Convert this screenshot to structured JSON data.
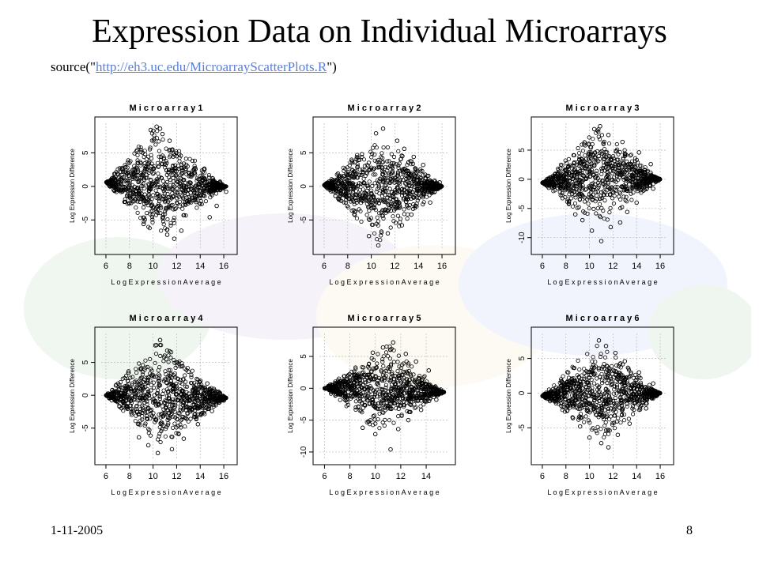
{
  "slide": {
    "title": "Expression Data on Individual Microarrays",
    "source_prefix": "source(\"",
    "source_url": "http://eh3.uc.edu/MicroarrayScatterPlots.R",
    "source_suffix": "\")",
    "footer_date": "1-11-2005",
    "page_number": "8"
  },
  "colors": {
    "points": "#000000",
    "axis": "#000000",
    "grid": "#bbbbbb",
    "link": "#5a7fd8",
    "watermark_green": "#6db06d",
    "watermark_blue": "#7f9fe8",
    "watermark_yellow": "#e8d38a",
    "watermark_purple": "#a485d0"
  },
  "chart_data": [
    {
      "type": "scatter",
      "title": "M i c r o a r r a y   1",
      "xlabel": "L o g  E x p r e s s i o n  A v e r a g e",
      "ylabel": "Log Expression Difference",
      "xlim": [
        5.6,
        16.6
      ],
      "ylim": [
        -9.2,
        9.4
      ],
      "xticks": [
        6,
        8,
        10,
        12,
        14,
        16
      ],
      "yticks": [
        -5,
        0,
        5
      ],
      "grid": true,
      "series": [
        {
          "marker": "open-circle",
          "shape": {
            "left": [
              6.0,
              0.6
            ],
            "center": [
              10.6,
              0
            ],
            "right": [
              16.2,
              0
            ],
            "upper_peak": [
              10.2,
              8.8
            ],
            "lower_peak": [
              10.4,
              -7.6
            ]
          },
          "points": [
            [
              10.3,
              8.9
            ],
            [
              10.6,
              8.6
            ],
            [
              9.8,
              8.4
            ],
            [
              10.8,
              7.8
            ],
            [
              11.4,
              6.8
            ],
            [
              12.0,
              4.5
            ],
            [
              12.6,
              3.4
            ],
            [
              13.6,
              2.6
            ],
            [
              11.8,
              -7.8
            ],
            [
              11.2,
              -7.2
            ],
            [
              12.4,
              -6.6
            ],
            [
              14.8,
              -4.6
            ],
            [
              15.4,
              -2.9
            ],
            [
              16.2,
              -0.8
            ],
            [
              9.2,
              -5.6
            ],
            [
              11.6,
              5.4
            ]
          ]
        }
      ]
    },
    {
      "type": "scatter",
      "title": "M i c r o a r r a y   2",
      "xlabel": "L o g  E x p r e s s i o n  A v e r a g e",
      "ylabel": "Log Expression Difference",
      "xlim": [
        5.6,
        16.6
      ],
      "ylim": [
        -9.2,
        9.4
      ],
      "xticks": [
        6,
        8,
        10,
        12,
        14,
        16
      ],
      "yticks": [
        -5,
        0,
        5
      ],
      "grid": true,
      "series": [
        {
          "marker": "open-circle",
          "shape": {
            "left": [
              6.0,
              0.2
            ],
            "center": [
              10.8,
              0
            ],
            "right": [
              16.0,
              0
            ],
            "upper_peak": [
              10.6,
              7.8
            ],
            "lower_peak": [
              10.8,
              -8.6
            ]
          },
          "points": [
            [
              11.0,
              8.6
            ],
            [
              10.4,
              7.9
            ],
            [
              12.2,
              6.8
            ],
            [
              12.8,
              5.6
            ],
            [
              13.6,
              4.4
            ],
            [
              14.4,
              3.2
            ],
            [
              9.8,
              -7.4
            ],
            [
              10.6,
              -8.8
            ],
            [
              11.4,
              -7.0
            ],
            [
              12.6,
              -5.8
            ],
            [
              13.4,
              -4.2
            ],
            [
              15.0,
              -2.4
            ],
            [
              15.8,
              0.6
            ],
            [
              9.2,
              4.8
            ],
            [
              8.6,
              3.6
            ]
          ]
        }
      ]
    },
    {
      "type": "scatter",
      "title": "M i c r o a r r a y   3",
      "xlabel": "L o g  E x p r e s s i o n  A v e r a g e",
      "ylabel": "Log Expression Difference",
      "xlim": [
        5.6,
        16.6
      ],
      "ylim": [
        -11.8,
        9.6
      ],
      "xticks": [
        6,
        8,
        10,
        12,
        14,
        16
      ],
      "yticks": [
        -10,
        -5,
        0,
        5
      ],
      "grid": true,
      "series": [
        {
          "marker": "open-circle",
          "shape": {
            "left": [
              6.0,
              -0.6
            ],
            "center": [
              11.0,
              0.8
            ],
            "right": [
              16.0,
              0
            ],
            "upper_peak": [
              10.8,
              9.0
            ],
            "lower_peak": [
              10.6,
              -8.4
            ]
          },
          "points": [
            [
              10.9,
              9.1
            ],
            [
              10.4,
              8.6
            ],
            [
              11.6,
              7.6
            ],
            [
              12.8,
              6.4
            ],
            [
              14.2,
              4.6
            ],
            [
              15.2,
              2.6
            ],
            [
              9.4,
              -7.0
            ],
            [
              10.2,
              -8.8
            ],
            [
              11.0,
              -10.6
            ],
            [
              11.8,
              -8.2
            ],
            [
              12.6,
              -7.4
            ],
            [
              13.2,
              -5.6
            ],
            [
              14.0,
              -4.0
            ],
            [
              15.4,
              -1.6
            ],
            [
              8.8,
              -6.0
            ]
          ]
        }
      ]
    },
    {
      "type": "scatter",
      "title": "M i c r o a r r a y   4",
      "xlabel": "L o g  E x p r e s s i o n  A v e r a g e",
      "ylabel": "Log Expression Difference",
      "xlim": [
        5.6,
        16.6
      ],
      "ylim": [
        -9.6,
        9.4
      ],
      "xticks": [
        6,
        8,
        10,
        12,
        14,
        16
      ],
      "yticks": [
        -5,
        0,
        5
      ],
      "grid": true,
      "series": [
        {
          "marker": "open-circle",
          "shape": {
            "left": [
              6.0,
              0
            ],
            "center": [
              10.6,
              -0.4
            ],
            "right": [
              16.2,
              -0.4
            ],
            "upper_peak": [
              10.4,
              8.4
            ],
            "lower_peak": [
              10.8,
              -8.0
            ]
          },
          "points": [
            [
              10.6,
              8.4
            ],
            [
              10.2,
              7.6
            ],
            [
              11.2,
              6.8
            ],
            [
              12.0,
              5.0
            ],
            [
              13.0,
              3.6
            ],
            [
              14.6,
              1.8
            ],
            [
              9.6,
              -7.6
            ],
            [
              10.4,
              -8.8
            ],
            [
              11.6,
              -8.2
            ],
            [
              12.6,
              -6.6
            ],
            [
              13.8,
              -4.4
            ],
            [
              15.0,
              -2.4
            ],
            [
              16.0,
              -0.8
            ],
            [
              8.8,
              -6.4
            ]
          ]
        }
      ]
    },
    {
      "type": "scatter",
      "title": "M i c r o a r r a y   5",
      "xlabel": "L o g  E x p r e s s i o n  A v e r a g e",
      "ylabel": "Log Expression Difference",
      "xlim": [
        5.6,
        15.8
      ],
      "ylim": [
        -11.0,
        8.6
      ],
      "xticks": [
        6,
        8,
        10,
        12,
        14
      ],
      "yticks": [
        -10,
        -5,
        0,
        5
      ],
      "grid": true,
      "series": [
        {
          "marker": "open-circle",
          "shape": {
            "left": [
              6.0,
              0
            ],
            "center": [
              10.8,
              0
            ],
            "right": [
              15.4,
              -0.6
            ],
            "upper_peak": [
              11.0,
              6.8
            ],
            "lower_peak": [
              10.2,
              -7.0
            ]
          },
          "points": [
            [
              11.4,
              7.2
            ],
            [
              10.6,
              6.4
            ],
            [
              12.4,
              5.4
            ],
            [
              13.2,
              4.2
            ],
            [
              14.2,
              2.8
            ],
            [
              9.0,
              -6.2
            ],
            [
              10.0,
              -7.2
            ],
            [
              11.2,
              -9.6
            ],
            [
              11.8,
              -6.4
            ],
            [
              12.6,
              -5.0
            ],
            [
              13.6,
              -3.4
            ],
            [
              14.8,
              -1.8
            ],
            [
              9.8,
              5.6
            ]
          ]
        }
      ]
    },
    {
      "type": "scatter",
      "title": "M i c r o a r r a y   6",
      "xlabel": "L o g  E x p r e s s i o n  A v e r a g e",
      "ylabel": "Log Expression Difference",
      "xlim": [
        5.6,
        16.6
      ],
      "ylim": [
        -9.4,
        8.6
      ],
      "xticks": [
        6,
        8,
        10,
        12,
        14,
        16
      ],
      "yticks": [
        -5,
        0,
        5
      ],
      "grid": true,
      "series": [
        {
          "marker": "open-circle",
          "shape": {
            "left": [
              6.0,
              -0.4
            ],
            "center": [
              11.0,
              0.6
            ],
            "right": [
              16.0,
              0
            ],
            "upper_peak": [
              10.6,
              7.4
            ],
            "lower_peak": [
              11.2,
              -6.8
            ]
          },
          "points": [
            [
              10.8,
              7.6
            ],
            [
              11.4,
              6.8
            ],
            [
              12.2,
              5.8
            ],
            [
              13.0,
              4.6
            ],
            [
              14.2,
              3.0
            ],
            [
              15.4,
              1.4
            ],
            [
              9.2,
              -4.8
            ],
            [
              10.0,
              -6.4
            ],
            [
              11.0,
              -7.2
            ],
            [
              11.6,
              -7.8
            ],
            [
              12.4,
              -6.0
            ],
            [
              13.4,
              -4.4
            ],
            [
              14.8,
              -2.2
            ],
            [
              8.6,
              -3.6
            ]
          ]
        }
      ]
    }
  ]
}
